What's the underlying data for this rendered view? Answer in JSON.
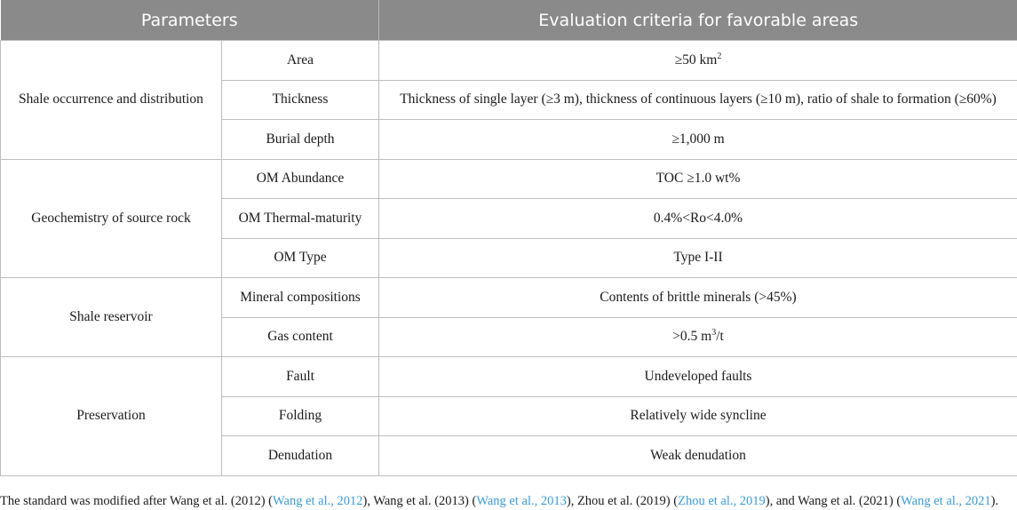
{
  "headers": [
    "Parameters",
    "Evaluation criteria for favorable areas"
  ],
  "groups": [
    {
      "name": "Shale occurrence and distribution",
      "rows": [
        {
          "param": "Area",
          "pre": "≥50 km",
          "sup": "2",
          "post": ""
        },
        {
          "param": "Thickness",
          "pre": "Thickness of single layer (≥3 m), thickness of continuous layers (≥10 m), ratio of shale to formation (≥60%)",
          "sup": "",
          "post": ""
        },
        {
          "param": "Burial depth",
          "pre": "≥1,000 m",
          "sup": "",
          "post": ""
        }
      ]
    },
    {
      "name": "Geochemistry of source rock",
      "rows": [
        {
          "param": "OM Abundance",
          "pre": "TOC ≥1.0 wt%",
          "sup": "",
          "post": ""
        },
        {
          "param": "OM Thermal-maturity",
          "pre": "0.4%<Ro<4.0%",
          "sup": "",
          "post": ""
        },
        {
          "param": "OM Type",
          "pre": "Type I-II",
          "sup": "",
          "post": ""
        }
      ]
    },
    {
      "name": "Shale reservoir",
      "rows": [
        {
          "param": "Mineral compositions",
          "pre": "Contents of brittle minerals (>45%)",
          "sup": "",
          "post": ""
        },
        {
          "param": "Gas content",
          "pre": ">0.5 m",
          "sup": "3",
          "post": "/t"
        }
      ]
    },
    {
      "name": "Preservation",
      "rows": [
        {
          "param": "Fault",
          "pre": "Undeveloped faults",
          "sup": "",
          "post": ""
        },
        {
          "param": "Folding",
          "pre": "Relatively wide syncline",
          "sup": "",
          "post": ""
        },
        {
          "param": "Denudation",
          "pre": "Weak denudation",
          "sup": "",
          "post": ""
        }
      ]
    }
  ],
  "footnote": [
    {
      "text": "The standard was modified after Wang et al. (2012) (",
      "link": false
    },
    {
      "text": "Wang et al., 2012",
      "link": true
    },
    {
      "text": "), Wang et al. (2013) (",
      "link": false
    },
    {
      "text": "Wang et al., 2013",
      "link": true
    },
    {
      "text": "), Zhou et al. (2019) (",
      "link": false
    },
    {
      "text": "Zhou et al., 2019",
      "link": true
    },
    {
      "text": "), and Wang et al. (2021) (",
      "link": false
    },
    {
      "text": "Wang et al., 2021",
      "link": true
    },
    {
      "text": ").",
      "link": false
    }
  ]
}
